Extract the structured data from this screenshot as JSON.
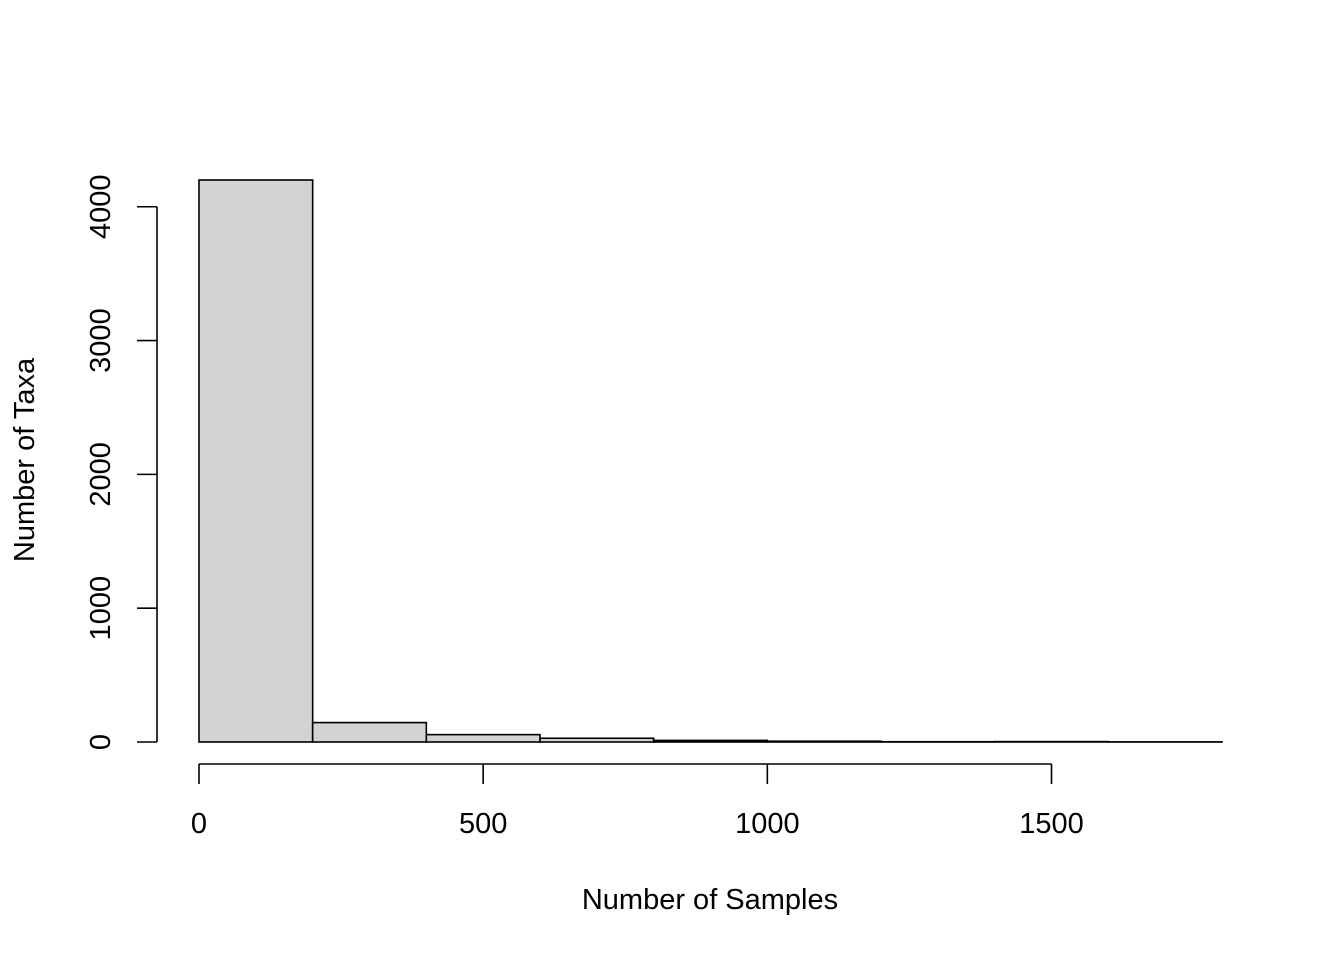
{
  "chart_data": {
    "type": "bar",
    "subtype": "histogram",
    "bins": [
      {
        "start": 0,
        "end": 200,
        "count": 4200
      },
      {
        "start": 200,
        "end": 400,
        "count": 145
      },
      {
        "start": 400,
        "end": 600,
        "count": 55
      },
      {
        "start": 600,
        "end": 800,
        "count": 28
      },
      {
        "start": 800,
        "end": 1000,
        "count": 12
      },
      {
        "start": 1000,
        "end": 1200,
        "count": 6
      },
      {
        "start": 1200,
        "end": 1400,
        "count": 2
      },
      {
        "start": 1400,
        "end": 1600,
        "count": 3
      },
      {
        "start": 1600,
        "end": 1800,
        "count": 1
      }
    ],
    "title": "",
    "xlabel": "Number of Samples",
    "ylabel": "Number of Taxa",
    "xlim": [
      0,
      1800
    ],
    "ylim": [
      0,
      4200
    ],
    "x_ticks": [
      0,
      500,
      1000,
      1500
    ],
    "y_ticks": [
      0,
      1000,
      2000,
      3000,
      4000
    ],
    "bar_color": "#d3d3d3",
    "edge_color": "#000000",
    "grid": false,
    "legend": "none"
  }
}
